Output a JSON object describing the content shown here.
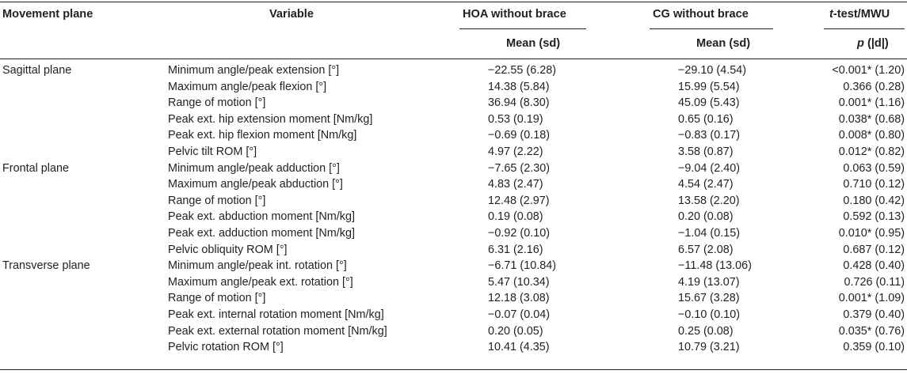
{
  "header": {
    "movement_plane": "Movement plane",
    "variable": "Variable",
    "hoa": "HOA without brace",
    "cg": "CG without brace",
    "test_italic": "t",
    "test_rest": "-test/MWU",
    "mean_sd_hoa": "Mean (sd)",
    "mean_sd_cg": "Mean (sd)",
    "p_italic": "p",
    "p_rest": " (|d|)"
  },
  "rows": [
    {
      "plane": "Sagittal plane",
      "variable": "Minimum angle/peak extension [°]",
      "hoa": "−22.55 (6.28)",
      "cg": "−29.10 (4.54)",
      "p": "<0.001* (1.20)"
    },
    {
      "plane": "",
      "variable": "Maximum angle/peak flexion [°]",
      "hoa": "14.38 (5.84)",
      "cg": "15.99 (5.54)",
      "p": "0.366 (0.28)"
    },
    {
      "plane": "",
      "variable": "Range of motion [°]",
      "hoa": "36.94 (8.30)",
      "cg": "45.09 (5.43)",
      "p": "0.001* (1.16)"
    },
    {
      "plane": "",
      "variable": "Peak ext. hip extension moment [Nm/kg]",
      "hoa": "0.53 (0.19)",
      "cg": "0.65 (0.16)",
      "p": "0.038* (0.68)"
    },
    {
      "plane": "",
      "variable": "Peak ext. hip flexion moment [Nm/kg]",
      "hoa": "−0.69 (0.18)",
      "cg": "−0.83 (0.17)",
      "p": "0.008* (0.80)"
    },
    {
      "plane": "",
      "variable": "Pelvic tilt ROM [°]",
      "hoa": "4.97 (2.22)",
      "cg": "3.58 (0.87)",
      "p": "0.012* (0.82)"
    },
    {
      "plane": "Frontal plane",
      "variable": "Minimum angle/peak adduction [°]",
      "hoa": "−7.65 (2.30)",
      "cg": "−9.04 (2.40)",
      "p": "0.063 (0.59)"
    },
    {
      "plane": "",
      "variable": "Maximum angle/peak abduction [°]",
      "hoa": "4.83 (2.47)",
      "cg": "4.54 (2.47)",
      "p": "0.710 (0.12)"
    },
    {
      "plane": "",
      "variable": "Range of motion [°]",
      "hoa": "12.48 (2.97)",
      "cg": "13.58 (2.20)",
      "p": "0.180 (0.42)"
    },
    {
      "plane": "",
      "variable": "Peak ext. abduction moment [Nm/kg]",
      "hoa": "0.19 (0.08)",
      "cg": "0.20 (0.08)",
      "p": "0.592 (0.13)"
    },
    {
      "plane": "",
      "variable": "Peak ext. adduction moment [Nm/kg]",
      "hoa": "−0.92 (0.10)",
      "cg": "−1.04 (0.15)",
      "p": "0.010* (0.95)"
    },
    {
      "plane": "",
      "variable": "Pelvic obliquity ROM [°]",
      "hoa": "6.31 (2.16)",
      "cg": "6.57 (2.08)",
      "p": "0.687 (0.12)"
    },
    {
      "plane": "Transverse plane",
      "variable": "Minimum angle/peak int. rotation [°]",
      "hoa": "−6.71 (10.84)",
      "cg": "−11.48 (13.06)",
      "p": "0.428 (0.40)"
    },
    {
      "plane": "",
      "variable": "Maximum angle/peak ext. rotation [°]",
      "hoa": "5.47 (10.34)",
      "cg": "4.19 (13.07)",
      "p": "0.726 (0.11)"
    },
    {
      "plane": "",
      "variable": "Range of motion [°]",
      "hoa": "12.18 (3.08)",
      "cg": "15.67 (3.28)",
      "p": "0.001* (1.09)"
    },
    {
      "plane": "",
      "variable": "Peak ext. internal rotation moment [Nm/kg]",
      "hoa": "−0.07 (0.04)",
      "cg": "−0.10 (0.10)",
      "p": "0.379 (0.40)"
    },
    {
      "plane": "",
      "variable": "Peak ext. external rotation moment [Nm/kg]",
      "hoa": "0.20 (0.05)",
      "cg": "0.25 (0.08)",
      "p": "0.035* (0.76)"
    },
    {
      "plane": "",
      "variable": "Pelvic rotation ROM [°]",
      "hoa": "10.41 (4.35)",
      "cg": "10.79 (3.21)",
      "p": "0.359 (0.10)"
    }
  ]
}
